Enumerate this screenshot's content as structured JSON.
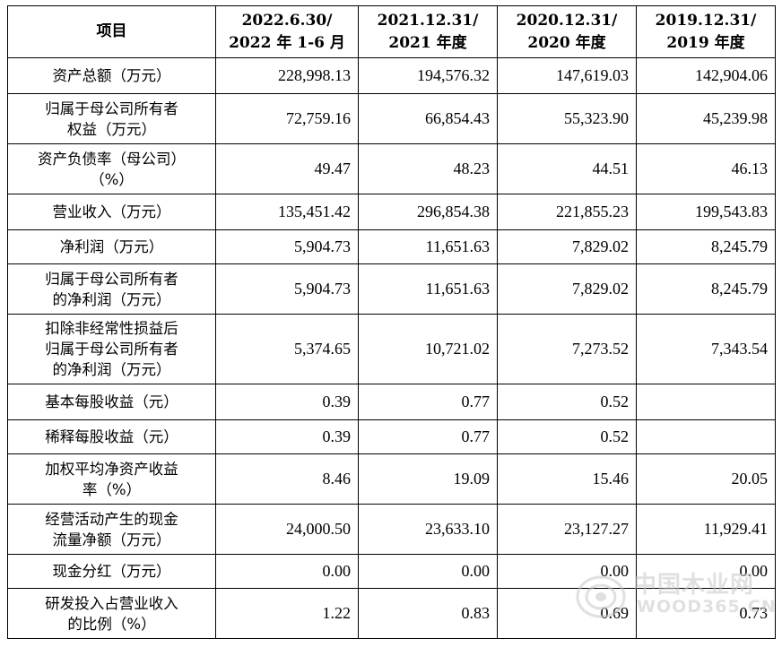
{
  "table": {
    "headers": [
      [
        "项目"
      ],
      [
        "2022.6.30/",
        "2022 年 1-6 月"
      ],
      [
        "2021.12.31/",
        "2021 年度"
      ],
      [
        "2020.12.31/",
        "2020 年度"
      ],
      [
        "2019.12.31/",
        "2019 年度"
      ]
    ],
    "rows": [
      {
        "label": [
          "资产总额（万元）"
        ],
        "values": [
          "228,998.13",
          "194,576.32",
          "147,619.03",
          "142,904.06"
        ]
      },
      {
        "label": [
          "归属于母公司所有者",
          "权益（万元）"
        ],
        "values": [
          "72,759.16",
          "66,854.43",
          "55,323.90",
          "45,239.98"
        ]
      },
      {
        "label": [
          "资产负债率（母公司）",
          "（%）"
        ],
        "values": [
          "49.47",
          "48.23",
          "44.51",
          "46.13"
        ]
      },
      {
        "label": [
          "营业收入（万元）"
        ],
        "values": [
          "135,451.42",
          "296,854.38",
          "221,855.23",
          "199,543.83"
        ]
      },
      {
        "label": [
          "净利润（万元）"
        ],
        "values": [
          "5,904.73",
          "11,651.63",
          "7,829.02",
          "8,245.79"
        ]
      },
      {
        "label": [
          "归属于母公司所有者",
          "的净利润（万元）"
        ],
        "values": [
          "5,904.73",
          "11,651.63",
          "7,829.02",
          "8,245.79"
        ]
      },
      {
        "label": [
          "扣除非经常性损益后",
          "归属于母公司所有者",
          "的净利润（万元）"
        ],
        "values": [
          "5,374.65",
          "10,721.02",
          "7,273.52",
          "7,343.54"
        ]
      },
      {
        "label": [
          "基本每股收益（元）"
        ],
        "values": [
          "0.39",
          "0.77",
          "0.52",
          ""
        ]
      },
      {
        "label": [
          "稀释每股收益（元）"
        ],
        "values": [
          "0.39",
          "0.77",
          "0.52",
          ""
        ]
      },
      {
        "label": [
          "加权平均净资产收益",
          "率（%）"
        ],
        "values": [
          "8.46",
          "19.09",
          "15.46",
          "20.05"
        ]
      },
      {
        "label": [
          "经营活动产生的现金",
          "流量净额（万元）"
        ],
        "values": [
          "24,000.50",
          "23,633.10",
          "23,127.27",
          "11,929.41"
        ]
      },
      {
        "label": [
          "现金分红（万元）"
        ],
        "values": [
          "0.00",
          "0.00",
          "0.00",
          "0.00"
        ]
      },
      {
        "label": [
          "研发投入占营业收入",
          "的比例（%）"
        ],
        "values": [
          "1.22",
          "0.83",
          "0.69",
          "0.73"
        ]
      }
    ]
  },
  "watermark": {
    "title": "中国木业网",
    "url": "WOOD365.CN",
    "color": "#c8c8c8"
  }
}
